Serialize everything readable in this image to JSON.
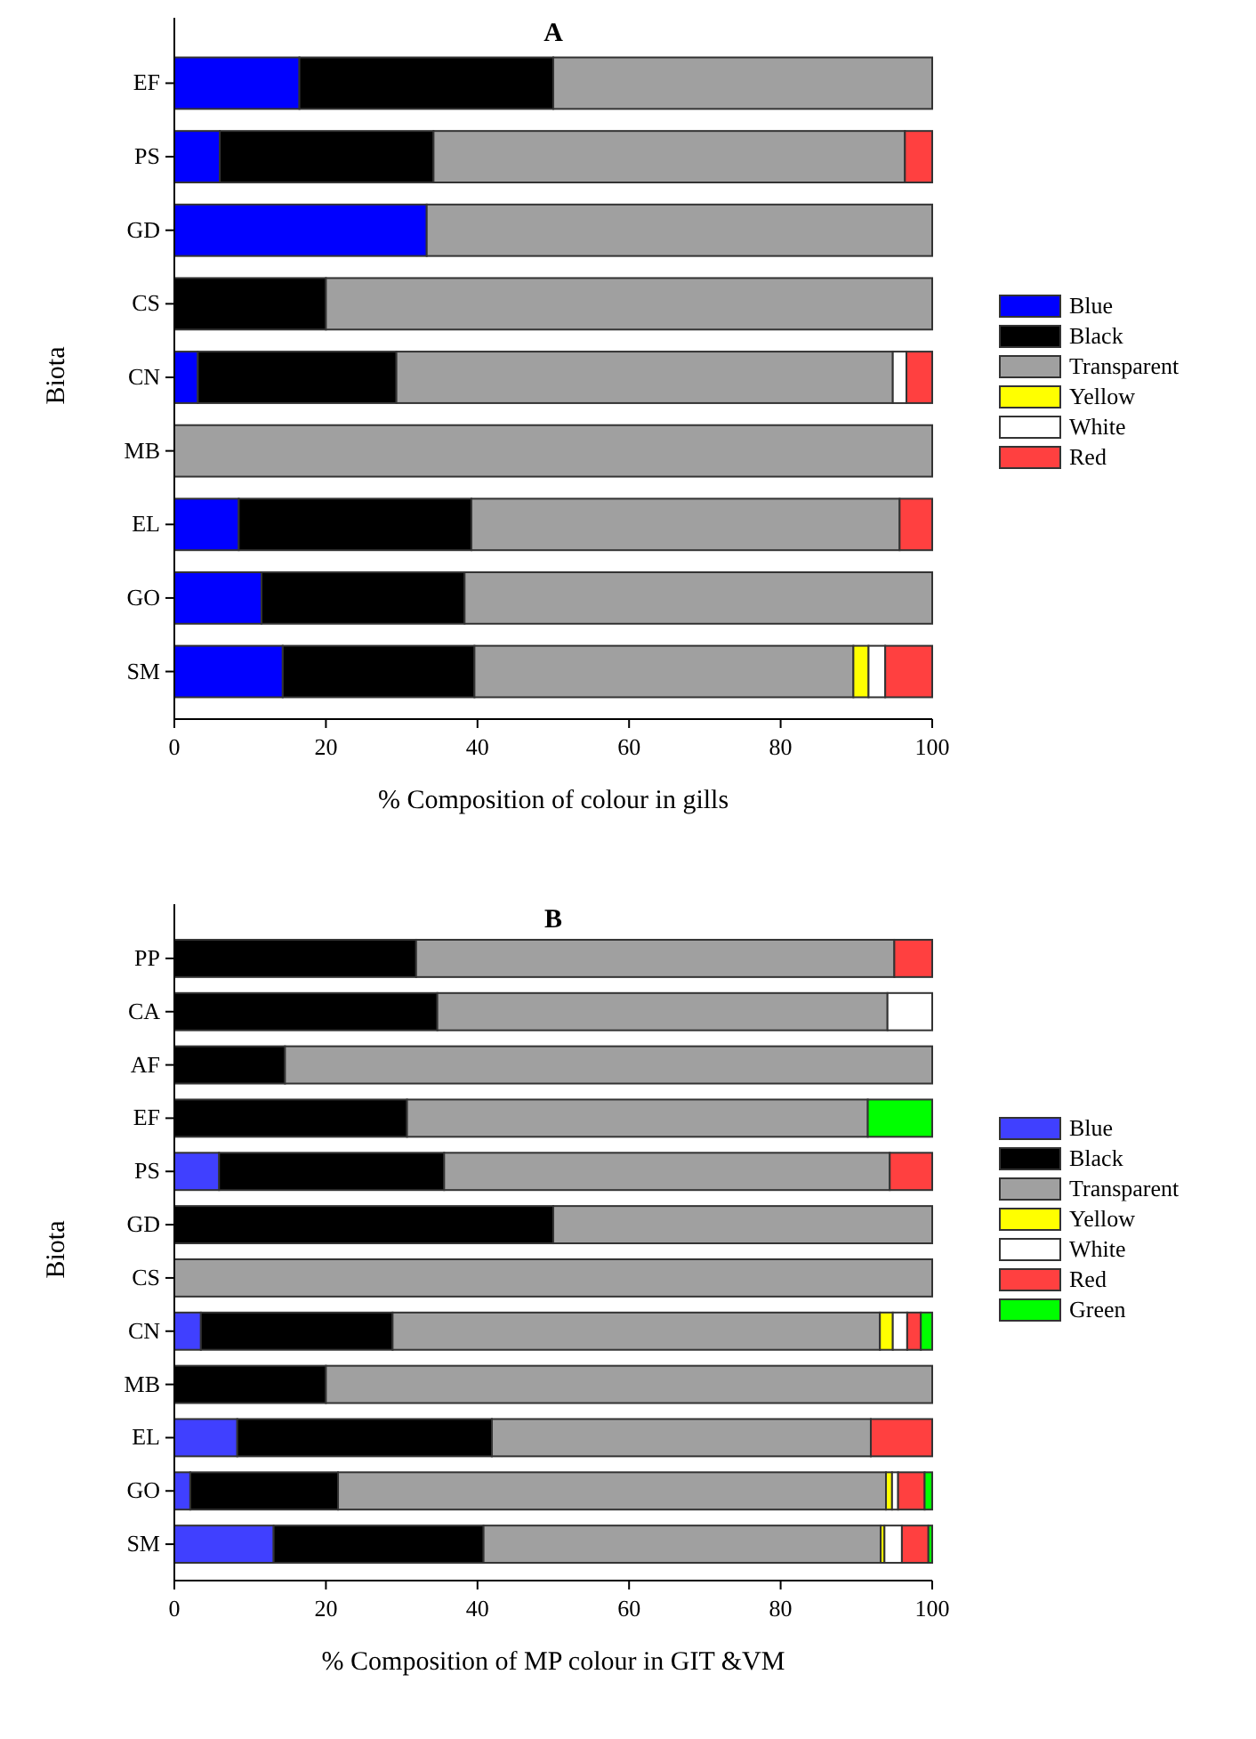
{
  "chart_data": [
    {
      "type": "bar",
      "title": "A",
      "xlabel": "% Composition of colour in gills",
      "ylabel": "Biota",
      "orientation": "horizontal",
      "stacked": true,
      "legend": "right",
      "xlim": [
        0,
        100
      ],
      "xticks": [
        0,
        20,
        40,
        60,
        80,
        100
      ],
      "categories": [
        "EF",
        "PS",
        "GD",
        "CS",
        "CN",
        "MB",
        "EL",
        "GO",
        "SM"
      ],
      "series": [
        {
          "name": "Blue",
          "color": "#0000ff",
          "values": [
            16.5,
            6,
            33.3,
            0,
            3.1,
            0,
            8.5,
            11.5,
            14.3
          ]
        },
        {
          "name": "Black",
          "color": "#000000",
          "values": [
            33.5,
            28.2,
            0,
            20,
            26.2,
            0,
            30.7,
            26.8,
            25.3
          ]
        },
        {
          "name": "Transparent",
          "color": "#a0a0a0",
          "values": [
            50,
            62.2,
            66.7,
            80,
            65.5,
            100,
            56.5,
            61.7,
            50
          ]
        },
        {
          "name": "Yellow",
          "color": "#ffff00",
          "values": [
            0,
            0,
            0,
            0,
            0,
            0,
            0,
            0,
            2
          ]
        },
        {
          "name": "White",
          "color": "#ffffff",
          "values": [
            0,
            0,
            0,
            0,
            1.8,
            0,
            0,
            0,
            2.2
          ]
        },
        {
          "name": "Red",
          "color": "#ff4040",
          "values": [
            0,
            3.6,
            0,
            0,
            3.4,
            0,
            4.3,
            0,
            6.2
          ]
        }
      ]
    },
    {
      "type": "bar",
      "title": "B",
      "xlabel": "% Composition of MP colour in GIT &VM",
      "ylabel": "Biota",
      "orientation": "horizontal",
      "stacked": true,
      "legend": "right",
      "xlim": [
        0,
        100
      ],
      "xticks": [
        0,
        20,
        40,
        60,
        80,
        100
      ],
      "categories": [
        "PP",
        "CA",
        "AF",
        "EF",
        "PS",
        "GD",
        "CS",
        "CN",
        "MB",
        "EL",
        "GO",
        "SM"
      ],
      "series": [
        {
          "name": "Blue",
          "color": "#4040ff",
          "values": [
            0,
            0,
            0,
            0,
            5.9,
            0,
            0,
            3.5,
            0,
            8.3,
            2.1,
            13.1
          ]
        },
        {
          "name": "Black",
          "color": "#000000",
          "values": [
            31.9,
            34.7,
            14.6,
            30.7,
            29.7,
            50,
            0,
            25.3,
            20,
            33.6,
            19.5,
            27.7
          ]
        },
        {
          "name": "Transparent",
          "color": "#a0a0a0",
          "values": [
            63.1,
            59.4,
            85.4,
            60.8,
            58.8,
            50,
            100,
            64.3,
            80,
            50,
            72.3,
            52.4
          ]
        },
        {
          "name": "Yellow",
          "color": "#ffff00",
          "values": [
            0,
            0,
            0,
            0,
            0,
            0,
            0,
            1.7,
            0,
            0,
            0.8,
            0.5
          ]
        },
        {
          "name": "White",
          "color": "#ffffff",
          "values": [
            0,
            5.9,
            0,
            0,
            0,
            0,
            0,
            1.9,
            0,
            0,
            0.8,
            2.3
          ]
        },
        {
          "name": "Red",
          "color": "#ff4040",
          "values": [
            5,
            0,
            0,
            0,
            5.6,
            0,
            0,
            1.8,
            0,
            8.1,
            3.5,
            3.5
          ]
        },
        {
          "name": "Green",
          "color": "#00ff00",
          "values": [
            0,
            0,
            0,
            8.5,
            0,
            0,
            0,
            1.5,
            0,
            0,
            1,
            0.5
          ]
        }
      ]
    }
  ]
}
